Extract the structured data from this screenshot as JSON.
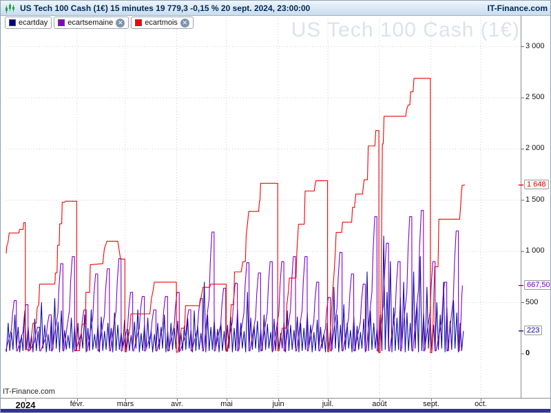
{
  "titlebar": {
    "title": "US Tech 100 Cash (1€) 15 minutes 19 779,3 -0,15 % 20 sept. 2024, 23:00:00",
    "brand": "IT-Finance.com",
    "icon": "candlestick-chart-icon"
  },
  "legend": {
    "close_icon": "✕",
    "items": [
      {
        "label": "ecartday",
        "color": "#000080",
        "closable": false
      },
      {
        "label": "ecartsemaine",
        "color": "#8800cc",
        "closable": true
      },
      {
        "label": "ecartmois",
        "color": "#ff0000",
        "closable": true
      }
    ]
  },
  "watermark": "US Tech 100 Cash (1€)",
  "footer_brand": "IT-Finance.com",
  "colors": {
    "titlebar_text": "#002a55",
    "watermark": "#dde2ea",
    "grid": "#c6cad6",
    "axis_line": "#8a8a8a",
    "bottom_bar": "#31309b"
  },
  "chart_data": {
    "type": "line",
    "title": "US Tech 100 Cash (1€)",
    "grid": "dotted",
    "legend_position": "top-left",
    "x_axis": {
      "unit": "days_since_2024-01-01",
      "ticks": [
        {
          "label": "2024",
          "day": 0,
          "bold": true
        },
        {
          "label": "févr.",
          "day": 31,
          "bold": false
        },
        {
          "label": "mars",
          "day": 60,
          "bold": false
        },
        {
          "label": "avr.",
          "day": 91,
          "bold": false
        },
        {
          "label": "mai",
          "day": 121,
          "bold": false
        },
        {
          "label": "juin",
          "day": 152,
          "bold": false
        },
        {
          "label": "juil.",
          "day": 182,
          "bold": false
        },
        {
          "label": "août",
          "day": 213,
          "bold": false
        },
        {
          "label": "sept.",
          "day": 244,
          "bold": false
        },
        {
          "label": "oct.",
          "day": 274,
          "bold": false
        }
      ],
      "gridline_days": [
        31,
        60,
        91,
        121,
        152,
        182,
        213,
        244,
        274
      ],
      "range_days": [
        -11.6,
        298
      ]
    },
    "y_axis": {
      "ticks": [
        {
          "label": "0",
          "value": 0,
          "bold": true
        },
        {
          "label": "500",
          "value": 500,
          "bold": false
        },
        {
          "label": "1 000",
          "value": 1000,
          "bold": false
        },
        {
          "label": "1 500",
          "value": 1500,
          "bold": false
        },
        {
          "label": "2 000",
          "value": 2000,
          "bold": false
        },
        {
          "label": "2 500",
          "value": 2500,
          "bold": false
        },
        {
          "label": "3 000",
          "value": 3000,
          "bold": false
        }
      ],
      "grid_values": [
        500,
        1000,
        1500,
        2000,
        2500,
        3000
      ],
      "range": [
        -430,
        3030
      ]
    },
    "series": [
      {
        "name": "ecartday",
        "color": "#0f0f9e",
        "kind": "daily_spikes",
        "start_day": -11.5,
        "step_days": 2,
        "last_label": "223",
        "last_value": 223,
        "peaks": [
          300,
          210,
          380,
          260,
          180,
          420,
          260,
          180,
          340,
          220,
          500,
          280,
          190,
          360,
          540,
          310,
          420,
          230,
          180,
          350,
          270,
          300,
          200,
          380,
          250,
          430,
          190,
          280,
          360,
          220,
          300,
          250,
          400,
          280,
          210,
          330,
          240,
          180,
          310,
          430,
          200,
          280,
          350,
          230,
          190,
          300,
          260,
          380,
          220,
          300,
          250,
          320,
          200,
          270,
          350,
          230,
          420,
          280,
          200,
          700,
          380,
          260,
          330,
          240,
          300,
          220,
          280,
          360,
          250,
          430,
          300,
          220,
          600,
          350,
          270,
          320,
          240,
          380,
          290,
          210,
          340,
          260,
          200,
          310,
          420,
          280,
          230,
          360,
          300,
          250,
          400,
          280,
          210,
          330,
          260,
          190,
          300,
          240,
          650,
          380,
          280,
          480,
          300,
          230,
          360,
          270,
          210,
          340,
          800,
          420,
          300,
          250,
          380,
          1150,
          600,
          900,
          450,
          350,
          550,
          700,
          400,
          300,
          800,
          500,
          950,
          400,
          650,
          350,
          280,
          500,
          380,
          700,
          450,
          320,
          520,
          400,
          300,
          223
        ]
      },
      {
        "name": "ecartsemaine",
        "color": "#7d00c8",
        "kind": "weekly_sawtooth",
        "start_day": -12,
        "step_days": 7,
        "last_label": "667,50",
        "last_value": 667.5,
        "peaks": [
          520,
          480,
          260,
          380,
          880,
          950,
          430,
          780,
          830,
          930,
          600,
          560,
          430,
          560,
          600,
          430,
          540,
          1190,
          640,
          690,
          890,
          790,
          900,
          900,
          950,
          950,
          700,
          550,
          990,
          780,
          680,
          1340,
          1080,
          900,
          1340,
          1400,
          900,
          700,
          1200,
          667.5
        ]
      },
      {
        "name": "ecartmois",
        "color": "#f40000",
        "kind": "monthly_steps",
        "last_label": "1 648",
        "last_value": 1648,
        "points": [
          [
            -11.6,
            980
          ],
          [
            -11.2,
            1060
          ],
          [
            -10.6,
            1080
          ],
          [
            -10.2,
            1130
          ],
          [
            -9.8,
            1180
          ],
          [
            -4,
            1180
          ],
          [
            -3.6,
            1215
          ],
          [
            -1.4,
            1215
          ],
          [
            -1.1,
            1280
          ],
          [
            -0.1,
            1280
          ],
          [
            -0.1,
            40
          ],
          [
            3,
            40
          ],
          [
            3.5,
            160
          ],
          [
            4.5,
            300
          ],
          [
            6.5,
            300
          ],
          [
            7,
            450
          ],
          [
            8,
            480
          ],
          [
            8.5,
            680
          ],
          [
            17.5,
            680
          ],
          [
            17.8,
            700
          ],
          [
            18,
            790
          ],
          [
            19,
            790
          ],
          [
            19.3,
            1060
          ],
          [
            20.3,
            1060
          ],
          [
            20.6,
            1270
          ],
          [
            21.8,
            1270
          ],
          [
            22.1,
            1480
          ],
          [
            23.5,
            1480
          ],
          [
            24,
            1490
          ],
          [
            30.8,
            1490
          ],
          [
            30.8,
            30
          ],
          [
            32.5,
            30
          ],
          [
            33.5,
            200
          ],
          [
            34.2,
            290
          ],
          [
            36,
            290
          ],
          [
            36.4,
            600
          ],
          [
            38.6,
            600
          ],
          [
            39,
            870
          ],
          [
            46.5,
            880
          ],
          [
            47.5,
            1030
          ],
          [
            49,
            1100
          ],
          [
            55.5,
            1100
          ],
          [
            56.2,
            1030
          ],
          [
            57.2,
            925
          ],
          [
            59.8,
            925
          ],
          [
            59.8,
            20
          ],
          [
            60.6,
            20
          ],
          [
            61.8,
            150
          ],
          [
            62.8,
            250
          ],
          [
            63.5,
            390
          ],
          [
            74.8,
            390
          ],
          [
            75.8,
            540
          ],
          [
            76.8,
            620
          ],
          [
            77.5,
            700
          ],
          [
            90.8,
            700
          ],
          [
            90.8,
            15
          ],
          [
            91.6,
            15
          ],
          [
            92.8,
            120
          ],
          [
            93.8,
            250
          ],
          [
            95.8,
            250
          ],
          [
            96.3,
            470
          ],
          [
            104.8,
            470
          ],
          [
            105.8,
            560
          ],
          [
            106.8,
            650
          ],
          [
            110.8,
            650
          ],
          [
            111.5,
            680
          ],
          [
            120.8,
            680
          ],
          [
            120.8,
            25
          ],
          [
            121.6,
            25
          ],
          [
            122.8,
            200
          ],
          [
            123.8,
            480
          ],
          [
            125.3,
            480
          ],
          [
            125.8,
            800
          ],
          [
            129.8,
            800
          ],
          [
            130.8,
            900
          ],
          [
            132.3,
            900
          ],
          [
            132.8,
            1150
          ],
          [
            133.8,
            1300
          ],
          [
            134.3,
            1390
          ],
          [
            140.3,
            1390
          ],
          [
            140.8,
            1490
          ],
          [
            141.1,
            1490
          ],
          [
            141.5,
            1665
          ],
          [
            151.8,
            1665
          ],
          [
            151.8,
            30
          ],
          [
            152.6,
            30
          ],
          [
            154.5,
            250
          ],
          [
            156.8,
            250
          ],
          [
            157.3,
            480
          ],
          [
            158.3,
            620
          ],
          [
            158.8,
            740
          ],
          [
            162.8,
            740
          ],
          [
            163.3,
            1000
          ],
          [
            164.3,
            1265
          ],
          [
            167.8,
            1265
          ],
          [
            168.3,
            1590
          ],
          [
            173.8,
            1590
          ],
          [
            174.3,
            1650
          ],
          [
            174.8,
            1690
          ],
          [
            181.8,
            1690
          ],
          [
            181.8,
            20
          ],
          [
            182.6,
            20
          ],
          [
            183.8,
            300
          ],
          [
            184.8,
            600
          ],
          [
            185.8,
            800
          ],
          [
            186.5,
            1000
          ],
          [
            187,
            1185
          ],
          [
            190.3,
            1185
          ],
          [
            190.8,
            1285
          ],
          [
            196.3,
            1285
          ],
          [
            196.8,
            1430
          ],
          [
            198,
            1430
          ],
          [
            198.8,
            1560
          ],
          [
            202.8,
            1560
          ],
          [
            203.8,
            1700
          ],
          [
            205.8,
            1700
          ],
          [
            206.3,
            2030
          ],
          [
            210.3,
            2030
          ],
          [
            210.8,
            2180
          ],
          [
            212.7,
            2180
          ],
          [
            212.7,
            10
          ],
          [
            213.4,
            10
          ],
          [
            214,
            600
          ],
          [
            214.4,
            1300
          ],
          [
            214.8,
            2050
          ],
          [
            215.3,
            2050
          ],
          [
            215.8,
            2320
          ],
          [
            228.8,
            2320
          ],
          [
            229.3,
            2380
          ],
          [
            230.3,
            2430
          ],
          [
            231.3,
            2430
          ],
          [
            231.8,
            2560
          ],
          [
            233.3,
            2560
          ],
          [
            233.8,
            2690
          ],
          [
            243.7,
            2690
          ],
          [
            243.7,
            10
          ],
          [
            244.5,
            10
          ],
          [
            245.3,
            300
          ],
          [
            245.8,
            600
          ],
          [
            246.3,
            850
          ],
          [
            248.3,
            850
          ],
          [
            248.8,
            1315
          ],
          [
            261.3,
            1315
          ],
          [
            261.8,
            1430
          ],
          [
            262.3,
            1560
          ],
          [
            262.8,
            1645
          ],
          [
            264.5,
            1648
          ]
        ]
      }
    ]
  }
}
